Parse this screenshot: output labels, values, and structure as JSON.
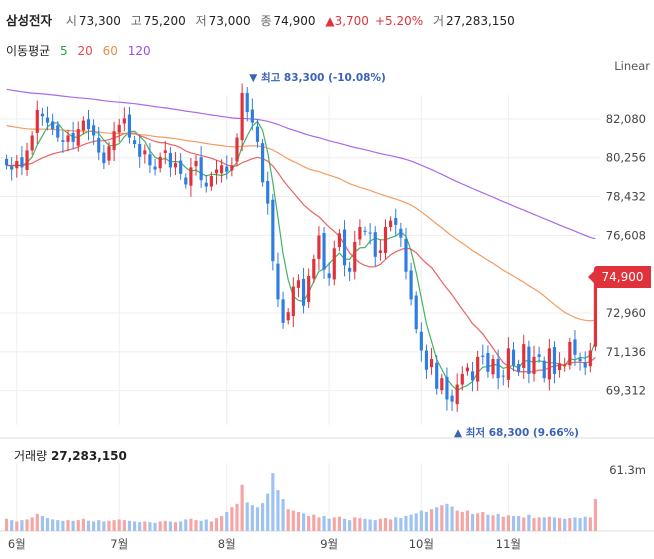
{
  "header": {
    "name": "삼성전자",
    "open_label": "시",
    "open": "73,300",
    "high_label": "고",
    "high": "75,200",
    "low_label": "저",
    "low": "73,000",
    "close_label": "종",
    "close": "74,900",
    "change": "▲3,700",
    "change_pct": "+5.20%",
    "volume_label": "거",
    "volume": "27,283,150"
  },
  "ma_legend": {
    "label": "이동평균",
    "items": [
      {
        "label": "5",
        "color": "#22a745"
      },
      {
        "label": "20",
        "color": "#e8464a"
      },
      {
        "label": "60",
        "color": "#f08c46"
      },
      {
        "label": "120",
        "color": "#9a4fe8"
      }
    ]
  },
  "scale_label": "Linear",
  "last_price": "74,900",
  "volume_panel": {
    "label": "거래량",
    "value": "27,283,150",
    "tick": "61.3m"
  },
  "colors": {
    "up": "#e0323a",
    "down": "#2f7de1",
    "up_vol": "#f5a6a4",
    "down_vol": "#9ec3f2",
    "grid": "#eeeeee"
  },
  "chart_data": {
    "type": "candlestick",
    "y_ticks": [
      "82,080",
      "80,256",
      "78,432",
      "76,608",
      "74,900",
      "72,960",
      "71,136",
      "69,312"
    ],
    "y_tick_values": [
      82080,
      80256,
      78432,
      76608,
      72960,
      71136,
      69312
    ],
    "ylim": [
      67700,
      84000
    ],
    "x_labels": [
      {
        "label": "6월",
        "index": 2
      },
      {
        "label": "7월",
        "index": 22
      },
      {
        "label": "8월",
        "index": 43
      },
      {
        "label": "9월",
        "index": 63
      },
      {
        "label": "10월",
        "index": 81
      },
      {
        "label": "11월",
        "index": 98
      }
    ],
    "annotations": [
      {
        "text": "▼ 최고 83,300 (-10.08%)",
        "index": 47,
        "value": 83300,
        "position": "above"
      },
      {
        "text": "▲ 최저 68,300 (9.66%)",
        "index": 87,
        "value": 68300,
        "position": "below"
      }
    ],
    "series": [
      {
        "name": "5",
        "type": "ma",
        "period": 5
      },
      {
        "name": "20",
        "type": "ma",
        "period": 20
      },
      {
        "name": "60",
        "type": "ma",
        "period": 60
      },
      {
        "name": "120",
        "type": "ma",
        "period": 120
      }
    ],
    "closes": [
      79900,
      79700,
      80100,
      79800,
      80600,
      81300,
      82500,
      82200,
      81900,
      81600,
      81200,
      81000,
      81300,
      81000,
      81600,
      82000,
      81600,
      81300,
      80500,
      80000,
      80800,
      81500,
      81800,
      82100,
      81200,
      80900,
      80300,
      80600,
      79900,
      79700,
      80300,
      80600,
      79800,
      80000,
      79500,
      79000,
      79800,
      80100,
      79200,
      78900,
      79400,
      79700,
      79900,
      79600,
      79900,
      81200,
      83300,
      82400,
      81900,
      81000,
      79100,
      78100,
      75400,
      73600,
      72500,
      73000,
      74200,
      74500,
      73300,
      74700,
      75500,
      76600,
      75000,
      74600,
      76000,
      76700,
      75200,
      74900,
      76300,
      77000,
      76800,
      76700,
      75600,
      75900,
      77000,
      77300,
      77100,
      76500,
      74900,
      73600,
      72200,
      71200,
      70300,
      70800,
      69400,
      69900,
      68900,
      68800,
      69600,
      70100,
      70400,
      69800,
      70900,
      70900,
      70200,
      70800,
      69900,
      70000,
      71300,
      70500,
      70200,
      71500,
      70100,
      70900,
      70900,
      69900,
      71300,
      70100,
      70600,
      70500,
      71600,
      71000,
      70700,
      70400,
      71200,
      74900
    ],
    "volumes": [
      0.18,
      0.16,
      0.14,
      0.16,
      0.17,
      0.2,
      0.25,
      0.22,
      0.19,
      0.17,
      0.16,
      0.15,
      0.16,
      0.15,
      0.16,
      0.18,
      0.15,
      0.14,
      0.16,
      0.14,
      0.15,
      0.16,
      0.17,
      0.16,
      0.15,
      0.14,
      0.13,
      0.14,
      0.13,
      0.12,
      0.14,
      0.15,
      0.14,
      0.13,
      0.14,
      0.17,
      0.18,
      0.16,
      0.15,
      0.17,
      0.14,
      0.19,
      0.22,
      0.28,
      0.35,
      0.4,
      0.68,
      0.42,
      0.38,
      0.35,
      0.41,
      0.55,
      0.85,
      0.6,
      0.47,
      0.32,
      0.3,
      0.28,
      0.26,
      0.22,
      0.24,
      0.2,
      0.22,
      0.18,
      0.2,
      0.21,
      0.18,
      0.16,
      0.2,
      0.19,
      0.18,
      0.17,
      0.16,
      0.18,
      0.19,
      0.17,
      0.2,
      0.19,
      0.22,
      0.24,
      0.26,
      0.3,
      0.28,
      0.32,
      0.35,
      0.38,
      0.4,
      0.36,
      0.3,
      0.28,
      0.3,
      0.25,
      0.26,
      0.28,
      0.24,
      0.23,
      0.25,
      0.21,
      0.23,
      0.22,
      0.22,
      0.2,
      0.24,
      0.19,
      0.2,
      0.2,
      0.21,
      0.2,
      0.19,
      0.18,
      0.19,
      0.2,
      0.19,
      0.21,
      0.2,
      0.47
    ]
  }
}
